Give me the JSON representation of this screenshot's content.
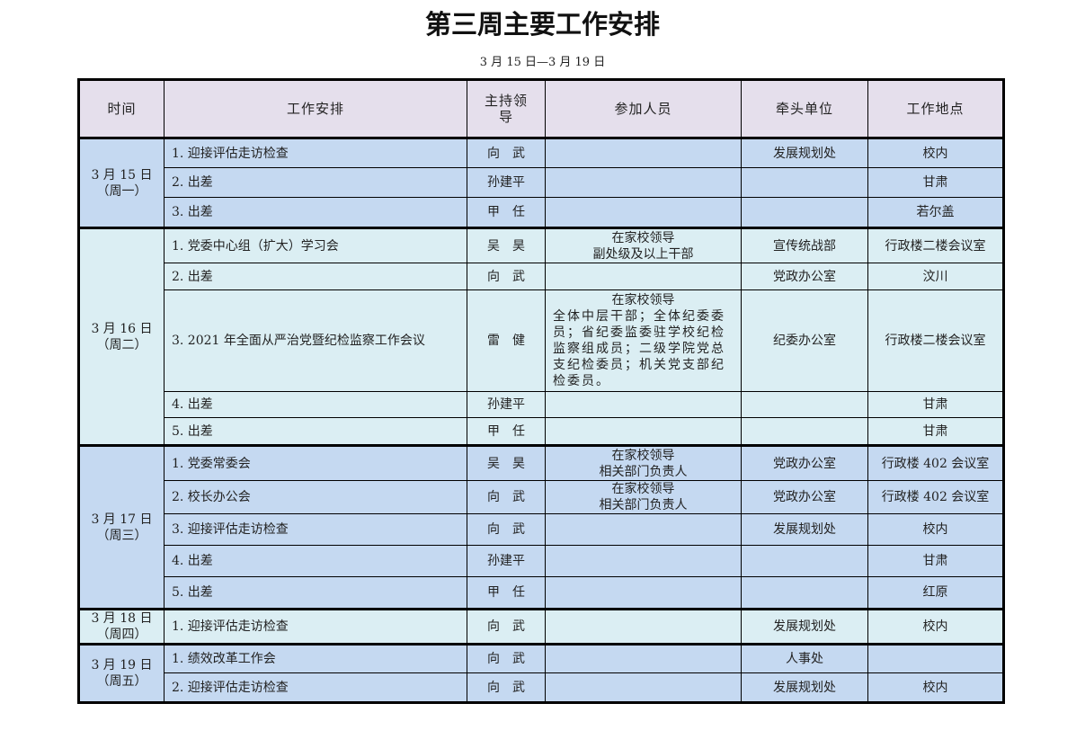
{
  "title": "第三周主要工作安排",
  "subtitle": "3 月 15 日—3 月 19 日",
  "headers": [
    "时间",
    "工作安排",
    "主持领导",
    "参加人员",
    "牵头单位",
    "工作地点"
  ],
  "colors": {
    "header_bg": "#e5dfec",
    "blue_row": "#c5d9f1",
    "cyan_row": "#dbeef3"
  },
  "days": [
    {
      "date": "3 月 15 日",
      "weekday": "（周一）",
      "items": [
        {
          "task": "1. 迎接评估走访检查",
          "host": "向　武",
          "participants": [],
          "unit": "发展规划处",
          "location": "校内"
        },
        {
          "task": "2. 出差",
          "host": "孙建平",
          "participants": [],
          "unit": "",
          "location": "甘肃"
        },
        {
          "task": "3. 出差",
          "host": "甲　任",
          "participants": [],
          "unit": "",
          "location": "若尔盖"
        }
      ]
    },
    {
      "date": "3 月 16 日",
      "weekday": "（周二）",
      "items": [
        {
          "task": "1. 党委中心组（扩大）学习会",
          "host": "吴　昊",
          "participants": [
            "在家校领导",
            "副处级及以上干部"
          ],
          "unit": "宣传统战部",
          "location": "行政楼二楼会议室"
        },
        {
          "task": "2. 出差",
          "host": "向　武",
          "participants": [],
          "unit": "党政办公室",
          "location": "汶川"
        },
        {
          "task": "3. 2021 年全面从严治党暨纪检监察工作会议",
          "host": "雷　健",
          "participants": [
            "在家校领导",
            "全体中层干部；全体纪委委员；省纪委监委驻学校纪检监察组成员；二级学院党总支纪检委员；机关党支部纪检委员。"
          ],
          "unit": "纪委办公室",
          "location": "行政楼二楼会议室"
        },
        {
          "task": "4. 出差",
          "host": "孙建平",
          "participants": [],
          "unit": "",
          "location": "甘肃"
        },
        {
          "task": "5. 出差",
          "host": "甲　任",
          "participants": [],
          "unit": "",
          "location": "甘肃"
        }
      ]
    },
    {
      "date": "3 月 17 日",
      "weekday": "（周三）",
      "items": [
        {
          "task": "1. 党委常委会",
          "host": "吴　昊",
          "participants": [
            "在家校领导",
            "相关部门负责人"
          ],
          "unit": "党政办公室",
          "location": "行政楼 402 会议室"
        },
        {
          "task": "2. 校长办公会",
          "host": "向　武",
          "participants": [
            "在家校领导",
            "相关部门负责人"
          ],
          "unit": "党政办公室",
          "location": "行政楼 402 会议室"
        },
        {
          "task": "3. 迎接评估走访检查",
          "host": "向　武",
          "participants": [],
          "unit": "发展规划处",
          "location": "校内"
        },
        {
          "task": "4. 出差",
          "host": "孙建平",
          "participants": [],
          "unit": "",
          "location": "甘肃"
        },
        {
          "task": "5. 出差",
          "host": "甲　任",
          "participants": [],
          "unit": "",
          "location": "红原"
        }
      ]
    },
    {
      "date": "3 月 18 日",
      "weekday": "（周四）",
      "items": [
        {
          "task": "1. 迎接评估走访检查",
          "host": "向　武",
          "participants": [],
          "unit": "发展规划处",
          "location": "校内"
        }
      ]
    },
    {
      "date": "3 月 19 日",
      "weekday": "（周五）",
      "items": [
        {
          "task": "1. 绩效改革工作会",
          "host": "向　武",
          "participants": [],
          "unit": "人事处",
          "location": ""
        },
        {
          "task": "2. 迎接评估走访检查",
          "host": "向　武",
          "participants": [],
          "unit": "发展规划处",
          "location": "校内"
        }
      ]
    }
  ]
}
